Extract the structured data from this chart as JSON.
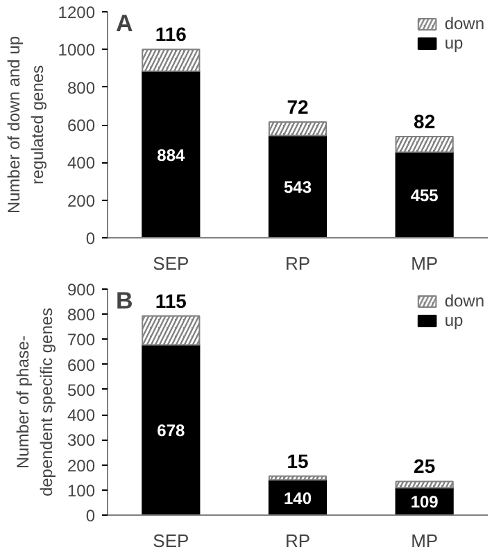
{
  "chart_data": [
    {
      "type": "bar",
      "stacked": true,
      "categories": [
        "SEP",
        "RP",
        "MP"
      ],
      "ylabel": "Number of down and up regulated genes",
      "ylim": [
        0,
        1200
      ],
      "yticks": [
        0,
        200,
        400,
        600,
        800,
        1000,
        1200
      ],
      "annotations": [
        "A"
      ],
      "legend": "top right",
      "data_labels": true,
      "grid": false,
      "series": [
        {
          "name": "up",
          "color": "#000000",
          "values": [
            884,
            543,
            455
          ]
        },
        {
          "name": "down",
          "color": "#808080",
          "values": [
            116,
            72,
            82
          ]
        }
      ]
    },
    {
      "type": "bar",
      "stacked": true,
      "categories": [
        "SEP",
        "RP",
        "MP"
      ],
      "ylabel": "Number of phase-dependent specific genes",
      "ylim": [
        0,
        900
      ],
      "yticks": [
        0,
        100,
        200,
        300,
        400,
        500,
        600,
        700,
        800,
        900
      ],
      "annotations": [
        "B"
      ],
      "legend": "top right",
      "data_labels": true,
      "grid": false,
      "series": [
        {
          "name": "up",
          "color": "#000000",
          "values": [
            678,
            140,
            109
          ]
        },
        {
          "name": "down",
          "color": "#808080",
          "values": [
            115,
            15,
            25
          ]
        }
      ]
    }
  ]
}
